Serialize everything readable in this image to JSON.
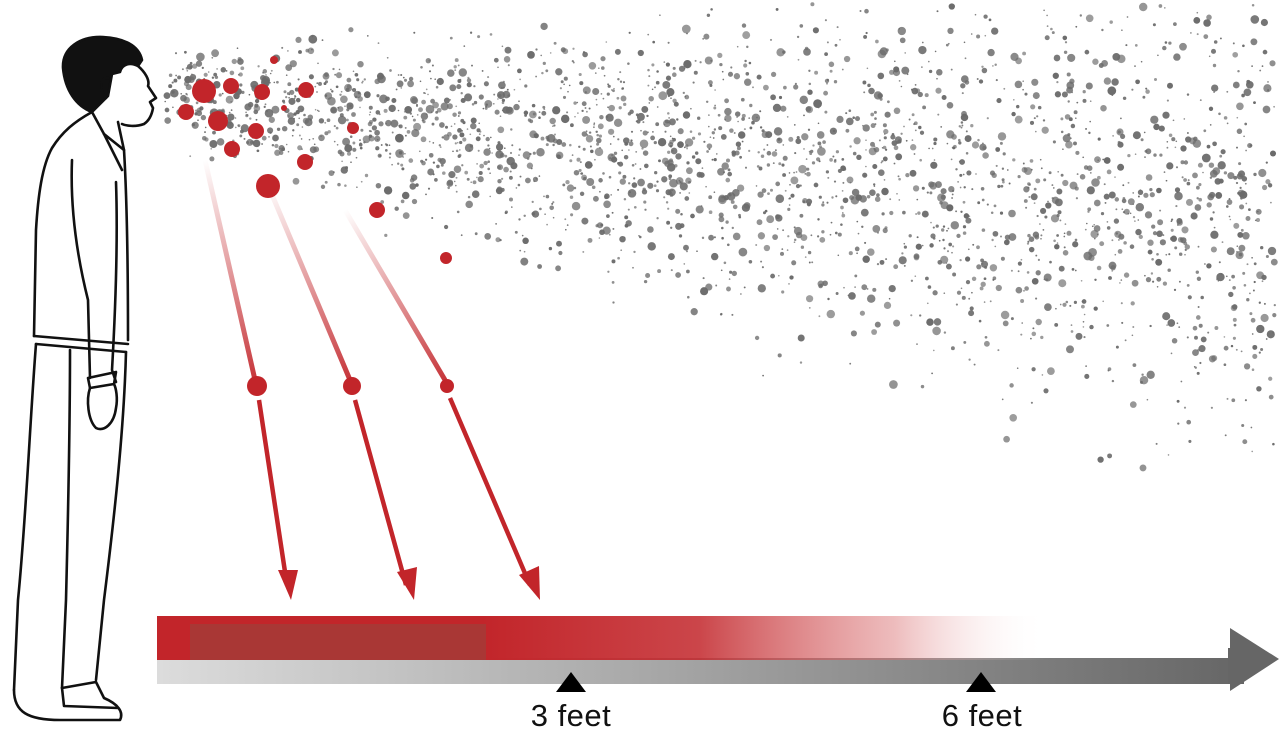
{
  "markers": [
    {
      "label": "3 feet"
    },
    {
      "label": "6 feet"
    }
  ],
  "colors": {
    "large_droplet": "#c2252a",
    "aerosol": "#6b6b6b",
    "ground_arrow_dark": "#6e6e6e",
    "ground_arrow_light": "#d4d4d4",
    "figure_outline": "#111111"
  },
  "icons": {
    "person": "person-exhaling-icon",
    "marker": "triangle-up-icon"
  }
}
